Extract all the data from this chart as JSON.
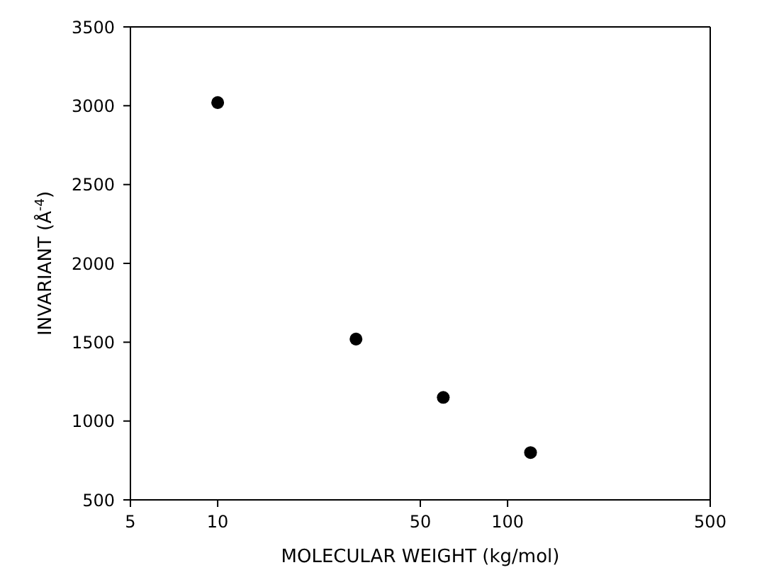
{
  "chart_data": {
    "type": "scatter",
    "xlabel": "MOLECULAR WEIGHT (kg/mol)",
    "ylabel": "INVARIANT (Å$^{-4}$)",
    "x": [
      10,
      30,
      60,
      120
    ],
    "values": [
      3020,
      1520,
      1150,
      800
    ],
    "color": "#000000",
    "marker": "circle",
    "log": "x",
    "xlim": [
      5,
      500
    ],
    "xticks": [
      5,
      10,
      50,
      100,
      500
    ],
    "ylim": [
      500,
      3500
    ],
    "yticks": [
      500,
      1000,
      1500,
      2000,
      2500,
      3000,
      3500
    ],
    "grid": false
  }
}
